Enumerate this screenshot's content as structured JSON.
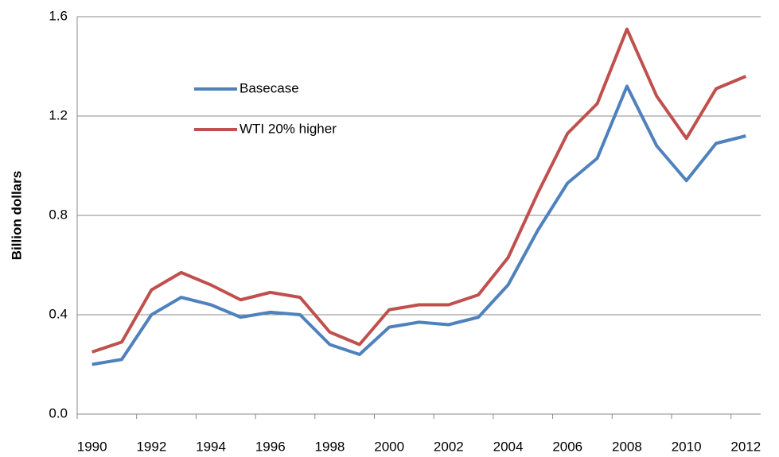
{
  "chart_data": {
    "type": "line",
    "y_label": "Billion dollars",
    "categories": [
      "1990",
      null,
      "1992",
      null,
      "1994",
      null,
      "1996",
      null,
      "1998",
      null,
      "2000",
      null,
      "2002",
      null,
      "2004",
      null,
      "2006",
      null,
      "2008",
      null,
      "2010",
      null,
      "2012"
    ],
    "series": [
      {
        "name": "Basecase",
        "color": "#4f81bd",
        "values": [
          0.2,
          0.22,
          0.4,
          0.47,
          0.44,
          0.39,
          0.41,
          0.4,
          0.28,
          0.24,
          0.35,
          0.37,
          0.36,
          0.39,
          0.52,
          0.74,
          0.93,
          1.03,
          1.32,
          1.08,
          0.94,
          1.09,
          1.12
        ]
      },
      {
        "name": "WTI 20% higher",
        "color": "#c0504d",
        "values": [
          0.25,
          0.29,
          0.5,
          0.57,
          0.52,
          0.46,
          0.49,
          0.47,
          0.33,
          0.28,
          0.42,
          0.44,
          0.44,
          0.48,
          0.63,
          0.89,
          1.13,
          1.25,
          1.55,
          1.28,
          1.11,
          1.31,
          1.36
        ]
      }
    ],
    "ylim": [
      0,
      1.6
    ],
    "yticks": [
      {
        "value": 0,
        "label": "0.0"
      },
      0.4,
      0.8,
      1.2,
      1.6
    ],
    "grid": true,
    "legend": "upper-left"
  }
}
